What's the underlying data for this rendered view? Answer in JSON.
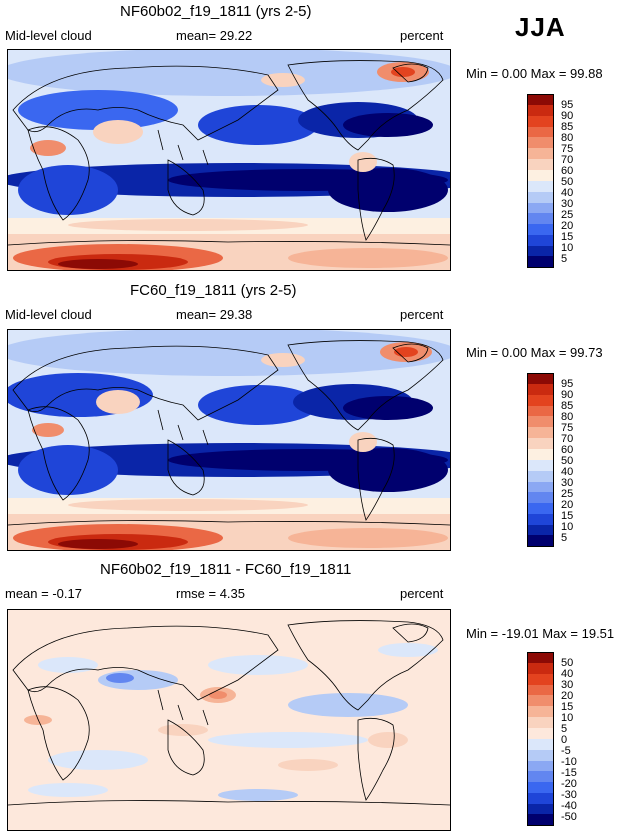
{
  "season": "JJA",
  "colors": {
    "abs_scale": [
      "#00006e",
      "#0a25a8",
      "#1f45d8",
      "#3a67f0",
      "#6286f0",
      "#8ba8f3",
      "#b5cbf6",
      "#dbe7fa",
      "#fdf0e1",
      "#f9d3bf",
      "#f6b497",
      "#f08d6c",
      "#ea6845",
      "#e3431f",
      "#ca2a10",
      "#8c0a05"
    ],
    "diff_scale": [
      "#00006e",
      "#0a25a8",
      "#1f45d8",
      "#3a67f0",
      "#6286f0",
      "#8ba8f3",
      "#b5cbf6",
      "#dbe7fa",
      "#fde8dc",
      "#f9d3bf",
      "#f6b497",
      "#f08d6c",
      "#ea6845",
      "#e3431f",
      "#ca2a10",
      "#8c0a05"
    ]
  },
  "panels": [
    {
      "title": "NF60b02_f19_1811 (yrs 2-5)",
      "left_info": "Mid-level cloud",
      "mid_info": "mean=  29.22",
      "units": "percent",
      "minmax": "Min =   0.00 Max =  99.88"
    },
    {
      "title": "FC60_f19_1811 (yrs 2-5)",
      "left_info": "Mid-level cloud",
      "mid_info": "mean=  29.38",
      "units": "percent",
      "minmax": "Min =   0.00 Max =  99.73"
    },
    {
      "title": "NF60b02_f19_1811 - FC60_f19_1811",
      "left_info": "mean =  -0.17",
      "mid_info": "rmse =   4.35",
      "units": "percent",
      "minmax": "Min = -19.01 Max =  19.51"
    }
  ],
  "chart_data": [
    {
      "type": "heatmap",
      "title": "NF60b02_f19_1811 (yrs 2-5)",
      "variable": "Mid-level cloud",
      "units": "percent",
      "mean": 29.22,
      "min": 0.0,
      "max": 99.88,
      "colorbar_levels": [
        5,
        10,
        15,
        20,
        25,
        30,
        40,
        50,
        60,
        70,
        75,
        80,
        85,
        90,
        95
      ]
    },
    {
      "type": "heatmap",
      "title": "FC60_f19_1811 (yrs 2-5)",
      "variable": "Mid-level cloud",
      "units": "percent",
      "mean": 29.38,
      "min": 0.0,
      "max": 99.73,
      "colorbar_levels": [
        5,
        10,
        15,
        20,
        25,
        30,
        40,
        50,
        60,
        70,
        75,
        80,
        85,
        90,
        95
      ]
    },
    {
      "type": "heatmap",
      "title": "NF60b02_f19_1811 - FC60_f19_1811",
      "units": "percent",
      "mean": -0.17,
      "rmse": 4.35,
      "min": -19.01,
      "max": 19.51,
      "colorbar_levels": [
        -50,
        -40,
        -30,
        -20,
        -15,
        -10,
        -5,
        0,
        5,
        10,
        15,
        20,
        30,
        40,
        50
      ]
    }
  ]
}
